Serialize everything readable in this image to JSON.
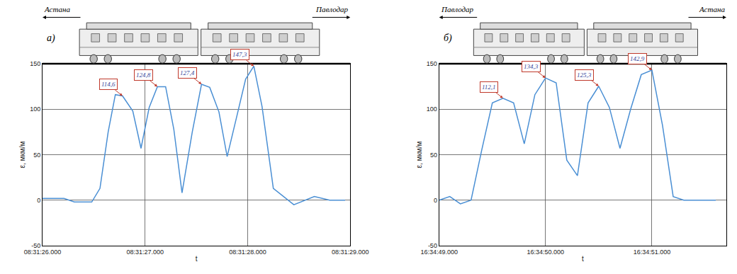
{
  "chart_data": [
    {
      "type": "line",
      "title": "а)",
      "directions": {
        "left": "Астана",
        "right": "Павлодар"
      },
      "xlabel": "t",
      "ylabel": "ε, мкм/м",
      "x": [
        "08:31:26.000",
        "08:31:26.120",
        "08:31:26.210",
        "08:31:26.310",
        "08:31:26.400",
        "08:31:26.480",
        "08:31:26.560",
        "08:31:26.640",
        "08:31:26.710",
        "08:31:26.780",
        "08:31:26.880",
        "08:31:26.960",
        "08:31:27.040",
        "08:31:27.120",
        "08:31:27.200",
        "08:31:27.280",
        "08:31:27.360",
        "08:31:27.460",
        "08:31:27.550",
        "08:31:27.630",
        "08:31:27.720",
        "08:31:27.800",
        "08:31:27.900",
        "08:31:27.980",
        "08:31:28.060",
        "08:31:28.140",
        "08:31:28.250",
        "08:31:28.450",
        "08:31:28.650",
        "08:31:28.800",
        "08:31:28.950"
      ],
      "values": [
        2,
        2,
        2,
        -2,
        -2,
        -2,
        13,
        75,
        116,
        114.6,
        98,
        57,
        102,
        124.8,
        124.8,
        78,
        8,
        75,
        127.4,
        124,
        97,
        48,
        95,
        133,
        147.3,
        103,
        13,
        -5,
        4,
        0,
        0
      ],
      "color": "#4a8fd4",
      "xlim": [
        "08:31:26.000",
        "08:31:29.000"
      ],
      "xticks": [
        "08:31:26.000",
        "08:31:27.000",
        "08:31:28.000",
        "08:31:29.000"
      ],
      "ylim": [
        -50,
        150
      ],
      "yticks": [
        -50,
        0,
        50,
        100,
        150
      ],
      "grid": true,
      "annotations": [
        {
          "x": "08:31:26.780",
          "y": 114.6,
          "text": "114,6"
        },
        {
          "x": "08:31:27.120",
          "y": 124.8,
          "text": "124,8"
        },
        {
          "x": "08:31:27.550",
          "y": 127.4,
          "text": "127,4"
        },
        {
          "x": "08:31:28.060",
          "y": 147.3,
          "text": "147,3"
        }
      ]
    },
    {
      "type": "line",
      "title": "б)",
      "directions": {
        "left": "Павлодар",
        "right": "Астана"
      },
      "xlabel": "t",
      "ylabel": "ε, мкм/м",
      "x": [
        "16:34:49.000",
        "16:34:49.100",
        "16:34:49.200",
        "16:34:49.300",
        "16:34:49.400",
        "16:34:49.500",
        "16:34:49.600",
        "16:34:49.700",
        "16:34:49.800",
        "16:34:49.900",
        "16:34:50.000",
        "16:34:50.100",
        "16:34:50.200",
        "16:34:50.300",
        "16:34:50.400",
        "16:34:50.500",
        "16:34:50.600",
        "16:34:50.700",
        "16:34:50.800",
        "16:34:50.900",
        "16:34:51.000",
        "16:34:51.100",
        "16:34:51.200",
        "16:34:51.300",
        "16:34:51.400",
        "16:34:51.500",
        "16:34:51.600"
      ],
      "values": [
        0,
        4,
        -4,
        0,
        55,
        107,
        112.1,
        107,
        62,
        116,
        134.3,
        129,
        44,
        27,
        107,
        125.3,
        102,
        57,
        100,
        138,
        142.9,
        82,
        4,
        0,
        0,
        0,
        0
      ],
      "color": "#4a8fd4",
      "xlim": [
        "16:34:49.000",
        "16:34:51.700"
      ],
      "xticks": [
        "16:34:49.000",
        "16:34:50.000",
        "16:34:51.000"
      ],
      "ylim": [
        -50,
        150
      ],
      "yticks": [
        -50,
        0,
        50,
        100,
        150
      ],
      "grid": true,
      "annotations": [
        {
          "x": "16:34:49.600",
          "y": 112.1,
          "text": "112,1"
        },
        {
          "x": "16:34:50.000",
          "y": 134.3,
          "text": "134,3"
        },
        {
          "x": "16:34:50.500",
          "y": 125.3,
          "text": "125,3"
        },
        {
          "x": "16:34:51.000",
          "y": 142.9,
          "text": "142,9"
        }
      ]
    }
  ]
}
